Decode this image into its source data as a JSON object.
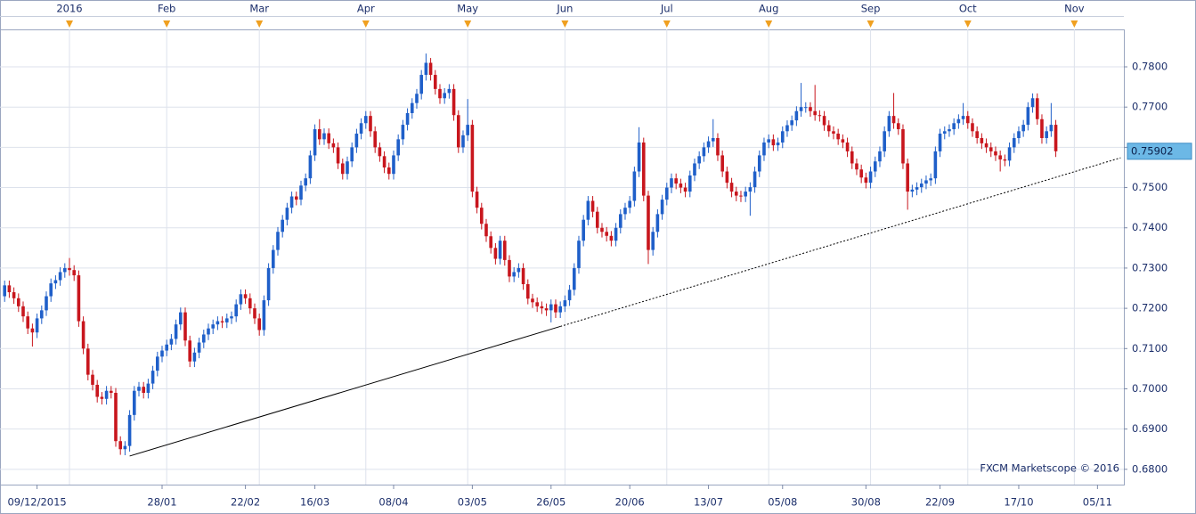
{
  "chart_data": {
    "type": "candlestick",
    "open": [
      0.723,
      0.7257,
      0.724,
      0.7225,
      0.7205,
      0.718,
      0.715,
      0.714,
      0.7175,
      0.7195,
      0.723,
      0.7262,
      0.727,
      0.729,
      0.73,
      0.7295,
      0.7282,
      0.7168,
      0.71,
      0.7035,
      0.701,
      0.698,
      0.6975,
      0.6995,
      0.699,
      0.687,
      0.685,
      0.6858,
      0.6935,
      0.6995,
      0.7005,
      0.699,
      0.7013,
      0.7045,
      0.708,
      0.7095,
      0.711,
      0.7124,
      0.716,
      0.719,
      0.712,
      0.7068,
      0.709,
      0.7115,
      0.7135,
      0.715,
      0.716,
      0.7168,
      0.7165,
      0.7175,
      0.718,
      0.721,
      0.7235,
      0.7225,
      0.72,
      0.7175,
      0.7146,
      0.722,
      0.73,
      0.7345,
      0.739,
      0.742,
      0.745,
      0.7478,
      0.747,
      0.7505,
      0.7523,
      0.758,
      0.7645,
      0.762,
      0.7635,
      0.761,
      0.76,
      0.756,
      0.7534,
      0.7565,
      0.76,
      0.7634,
      0.766,
      0.7678,
      0.764,
      0.76,
      0.7578,
      0.755,
      0.7534,
      0.758,
      0.762,
      0.7656,
      0.7685,
      0.771,
      0.7733,
      0.778,
      0.781,
      0.778,
      0.7745,
      0.7722,
      0.7735,
      0.7745,
      0.768,
      0.76,
      0.763,
      0.7656,
      0.749,
      0.745,
      0.741,
      0.7379,
      0.735,
      0.7323,
      0.7368,
      0.732,
      0.7279,
      0.729,
      0.73,
      0.726,
      0.7224,
      0.7215,
      0.7205,
      0.72,
      0.7195,
      0.721,
      0.719,
      0.7205,
      0.722,
      0.7246,
      0.73,
      0.7368,
      0.742,
      0.7467,
      0.744,
      0.74,
      0.739,
      0.738,
      0.7368,
      0.74,
      0.7434,
      0.745,
      0.7467,
      0.754,
      0.7612,
      0.748,
      0.7345,
      0.739,
      0.7434,
      0.747,
      0.75,
      0.7523,
      0.751,
      0.75,
      0.749,
      0.753,
      0.756,
      0.7578,
      0.76,
      0.7615,
      0.7623,
      0.758,
      0.754,
      0.7512,
      0.749,
      0.748,
      0.7478,
      0.749,
      0.7501,
      0.754,
      0.758,
      0.7612,
      0.762,
      0.7605,
      0.7612,
      0.764,
      0.7655,
      0.7667,
      0.769,
      0.77,
      0.77,
      0.769,
      0.768,
      0.7678,
      0.7655,
      0.764,
      0.7634,
      0.762,
      0.7612,
      0.759,
      0.756,
      0.7545,
      0.7525,
      0.7512,
      0.754,
      0.7565,
      0.759,
      0.764,
      0.7678,
      0.766,
      0.7645,
      0.756,
      0.749,
      0.7495,
      0.7501,
      0.751,
      0.7518,
      0.7523,
      0.759,
      0.7634,
      0.764,
      0.7645,
      0.766,
      0.767,
      0.7678,
      0.766,
      0.764,
      0.7623,
      0.761,
      0.76,
      0.759,
      0.758,
      0.757,
      0.7567,
      0.76,
      0.7623,
      0.764,
      0.7656,
      0.77,
      0.7722,
      0.767,
      0.7623,
      0.764,
      0.7656
    ],
    "high": [
      0.7269,
      0.7269,
      0.7252,
      0.7237,
      0.7217,
      0.7192,
      0.7162,
      0.7187,
      0.7207,
      0.7242,
      0.7274,
      0.7282,
      0.7302,
      0.7312,
      0.7325,
      0.7307,
      0.7294,
      0.718,
      0.7112,
      0.7047,
      0.7022,
      0.6992,
      0.7007,
      0.7007,
      0.7002,
      0.6882,
      0.687,
      0.6947,
      0.7007,
      0.7017,
      0.7017,
      0.7025,
      0.7057,
      0.7092,
      0.7107,
      0.7122,
      0.7136,
      0.7172,
      0.7202,
      0.7202,
      0.7132,
      0.7102,
      0.7127,
      0.7147,
      0.7162,
      0.7172,
      0.718,
      0.718,
      0.7187,
      0.7192,
      0.7222,
      0.7247,
      0.7247,
      0.7237,
      0.7212,
      0.7187,
      0.7232,
      0.7312,
      0.7357,
      0.7402,
      0.7432,
      0.7462,
      0.749,
      0.749,
      0.7517,
      0.7535,
      0.7592,
      0.7657,
      0.767,
      0.7647,
      0.7647,
      0.7622,
      0.7612,
      0.7572,
      0.7577,
      0.7612,
      0.7646,
      0.7672,
      0.769,
      0.769,
      0.7652,
      0.7612,
      0.759,
      0.7562,
      0.7592,
      0.7632,
      0.7668,
      0.7697,
      0.7722,
      0.7745,
      0.7792,
      0.7833,
      0.7822,
      0.7792,
      0.7757,
      0.7747,
      0.7757,
      0.7757,
      0.7692,
      0.7642,
      0.772,
      0.7668,
      0.7502,
      0.7462,
      0.7422,
      0.7391,
      0.7362,
      0.738,
      0.738,
      0.7332,
      0.7302,
      0.7312,
      0.7312,
      0.7272,
      0.7236,
      0.7227,
      0.7217,
      0.7212,
      0.7222,
      0.7222,
      0.7217,
      0.7232,
      0.7258,
      0.7312,
      0.738,
      0.7432,
      0.7479,
      0.7479,
      0.7452,
      0.7412,
      0.7402,
      0.7392,
      0.7412,
      0.7446,
      0.7462,
      0.7479,
      0.7552,
      0.765,
      0.7624,
      0.7492,
      0.7402,
      0.7446,
      0.7482,
      0.7512,
      0.7535,
      0.7535,
      0.7522,
      0.7512,
      0.7542,
      0.7572,
      0.759,
      0.7612,
      0.7627,
      0.767,
      0.7635,
      0.7592,
      0.7552,
      0.7524,
      0.7502,
      0.7492,
      0.7502,
      0.7513,
      0.7552,
      0.7592,
      0.7624,
      0.7632,
      0.7632,
      0.7624,
      0.7652,
      0.7667,
      0.7679,
      0.7702,
      0.776,
      0.7712,
      0.7712,
      0.7755,
      0.7692,
      0.769,
      0.7667,
      0.7652,
      0.7646,
      0.7632,
      0.7624,
      0.7602,
      0.7572,
      0.7557,
      0.7537,
      0.7552,
      0.7577,
      0.7602,
      0.7652,
      0.769,
      0.7735,
      0.7672,
      0.7657,
      0.7572,
      0.7507,
      0.7513,
      0.7522,
      0.753,
      0.7535,
      0.7602,
      0.7646,
      0.7652,
      0.7657,
      0.7672,
      0.7682,
      0.771,
      0.769,
      0.7672,
      0.7652,
      0.7635,
      0.7622,
      0.7612,
      0.7602,
      0.7592,
      0.7582,
      0.7612,
      0.7635,
      0.7652,
      0.7668,
      0.7712,
      0.7734,
      0.7734,
      0.7682,
      0.7652,
      0.771,
      0.7668
    ],
    "low": [
      0.7216,
      0.7226,
      0.7211,
      0.7191,
      0.7166,
      0.7136,
      0.7105,
      0.7126,
      0.7161,
      0.7181,
      0.7216,
      0.7248,
      0.7256,
      0.7276,
      0.7281,
      0.7268,
      0.7154,
      0.7086,
      0.7021,
      0.6996,
      0.6966,
      0.6961,
      0.6961,
      0.6976,
      0.6856,
      0.6836,
      0.6835,
      0.6844,
      0.6921,
      0.6981,
      0.6976,
      0.6976,
      0.6999,
      0.7031,
      0.7066,
      0.7081,
      0.7096,
      0.711,
      0.7146,
      0.7106,
      0.7054,
      0.7054,
      0.7076,
      0.7101,
      0.7121,
      0.7136,
      0.7146,
      0.7151,
      0.7151,
      0.7161,
      0.7166,
      0.7196,
      0.7211,
      0.7186,
      0.7161,
      0.7132,
      0.7132,
      0.7206,
      0.7286,
      0.7331,
      0.7376,
      0.7406,
      0.7436,
      0.7456,
      0.7456,
      0.7491,
      0.7509,
      0.7566,
      0.7606,
      0.7606,
      0.7596,
      0.7586,
      0.7546,
      0.752,
      0.752,
      0.7551,
      0.7586,
      0.762,
      0.7646,
      0.7626,
      0.7586,
      0.7564,
      0.7536,
      0.752,
      0.752,
      0.7566,
      0.7606,
      0.7642,
      0.7671,
      0.7696,
      0.7719,
      0.7766,
      0.7766,
      0.7731,
      0.7708,
      0.7708,
      0.7721,
      0.7666,
      0.7586,
      0.7586,
      0.7616,
      0.7476,
      0.7436,
      0.7396,
      0.7365,
      0.7336,
      0.7309,
      0.7309,
      0.7306,
      0.7265,
      0.7265,
      0.7276,
      0.7246,
      0.721,
      0.7201,
      0.7191,
      0.7186,
      0.7181,
      0.7165,
      0.7176,
      0.7176,
      0.7191,
      0.7206,
      0.7232,
      0.7286,
      0.7354,
      0.7406,
      0.7426,
      0.7386,
      0.7376,
      0.7366,
      0.7354,
      0.7354,
      0.7386,
      0.742,
      0.7436,
      0.7453,
      0.7526,
      0.7466,
      0.731,
      0.7331,
      0.7376,
      0.742,
      0.7456,
      0.7486,
      0.7496,
      0.7486,
      0.7476,
      0.7476,
      0.7516,
      0.7546,
      0.7564,
      0.7586,
      0.7601,
      0.7566,
      0.7526,
      0.7498,
      0.7476,
      0.7466,
      0.7464,
      0.7464,
      0.743,
      0.7487,
      0.7526,
      0.7566,
      0.7598,
      0.7591,
      0.7591,
      0.7598,
      0.7626,
      0.7641,
      0.7653,
      0.7676,
      0.7686,
      0.7676,
      0.7666,
      0.7664,
      0.7641,
      0.7626,
      0.762,
      0.7606,
      0.7598,
      0.7576,
      0.7546,
      0.7531,
      0.7511,
      0.7498,
      0.7498,
      0.7526,
      0.7551,
      0.7576,
      0.7626,
      0.7646,
      0.7631,
      0.7546,
      0.7445,
      0.7476,
      0.7481,
      0.7487,
      0.7496,
      0.7504,
      0.7509,
      0.7576,
      0.762,
      0.7626,
      0.7631,
      0.7646,
      0.7656,
      0.7646,
      0.7626,
      0.7609,
      0.7596,
      0.7586,
      0.7576,
      0.7566,
      0.754,
      0.7553,
      0.7553,
      0.7586,
      0.7609,
      0.7626,
      0.7642,
      0.7686,
      0.7656,
      0.7609,
      0.7609,
      0.7626,
      0.7576
    ],
    "close": [
      0.7257,
      0.724,
      0.7225,
      0.7205,
      0.718,
      0.715,
      0.714,
      0.7175,
      0.7195,
      0.723,
      0.7262,
      0.727,
      0.729,
      0.73,
      0.7295,
      0.7282,
      0.7168,
      0.71,
      0.7035,
      0.701,
      0.698,
      0.6975,
      0.6995,
      0.699,
      0.687,
      0.685,
      0.6858,
      0.6935,
      0.6995,
      0.7005,
      0.699,
      0.7013,
      0.7045,
      0.708,
      0.7095,
      0.711,
      0.7124,
      0.716,
      0.719,
      0.712,
      0.7068,
      0.709,
      0.7115,
      0.7135,
      0.715,
      0.716,
      0.7168,
      0.7165,
      0.7175,
      0.718,
      0.721,
      0.7235,
      0.7225,
      0.72,
      0.7175,
      0.7146,
      0.722,
      0.73,
      0.7345,
      0.739,
      0.742,
      0.745,
      0.7478,
      0.747,
      0.7505,
      0.7523,
      0.758,
      0.7645,
      0.762,
      0.7635,
      0.761,
      0.76,
      0.756,
      0.7534,
      0.7565,
      0.76,
      0.7634,
      0.766,
      0.7678,
      0.764,
      0.76,
      0.7578,
      0.755,
      0.7534,
      0.758,
      0.762,
      0.7656,
      0.7685,
      0.771,
      0.7733,
      0.778,
      0.781,
      0.778,
      0.7745,
      0.7722,
      0.7735,
      0.7745,
      0.768,
      0.76,
      0.763,
      0.7656,
      0.749,
      0.745,
      0.741,
      0.7379,
      0.735,
      0.7323,
      0.7368,
      0.732,
      0.7279,
      0.729,
      0.73,
      0.726,
      0.7224,
      0.7215,
      0.7205,
      0.72,
      0.7195,
      0.721,
      0.719,
      0.7205,
      0.722,
      0.7246,
      0.73,
      0.7368,
      0.742,
      0.7467,
      0.744,
      0.74,
      0.739,
      0.738,
      0.7368,
      0.74,
      0.7434,
      0.745,
      0.7467,
      0.754,
      0.7612,
      0.748,
      0.7345,
      0.739,
      0.7434,
      0.747,
      0.75,
      0.7523,
      0.751,
      0.75,
      0.749,
      0.753,
      0.756,
      0.7578,
      0.76,
      0.7615,
      0.7623,
      0.758,
      0.754,
      0.7512,
      0.749,
      0.748,
      0.7478,
      0.749,
      0.7501,
      0.754,
      0.758,
      0.7612,
      0.762,
      0.7605,
      0.7612,
      0.764,
      0.7655,
      0.7667,
      0.769,
      0.77,
      0.77,
      0.769,
      0.768,
      0.7678,
      0.7655,
      0.764,
      0.7634,
      0.762,
      0.7612,
      0.759,
      0.756,
      0.7545,
      0.7525,
      0.7512,
      0.754,
      0.7565,
      0.759,
      0.764,
      0.7678,
      0.766,
      0.7645,
      0.756,
      0.749,
      0.7495,
      0.7501,
      0.751,
      0.7518,
      0.7523,
      0.759,
      0.7634,
      0.764,
      0.7645,
      0.766,
      0.767,
      0.7678,
      0.766,
      0.764,
      0.7623,
      0.761,
      0.76,
      0.759,
      0.758,
      0.757,
      0.7567,
      0.76,
      0.7623,
      0.764,
      0.7656,
      0.77,
      0.7722,
      0.767,
      0.7623,
      0.764,
      0.7656,
      0.75902
    ],
    "up_color": "#1f5fc9",
    "down_color": "#c8161d",
    "xlim": [
      -1,
      241.7
    ],
    "ylim": [
      0.6762,
      0.7893
    ],
    "yticks": [
      {
        "value": 0.68,
        "label": "0.6800"
      },
      {
        "value": 0.69,
        "label": "0.6900"
      },
      {
        "value": 0.7,
        "label": "0.7000"
      },
      {
        "value": 0.71,
        "label": "0.7100"
      },
      {
        "value": 0.72,
        "label": "0.7200"
      },
      {
        "value": 0.73,
        "label": "0.7300"
      },
      {
        "value": 0.74,
        "label": "0.7400"
      },
      {
        "value": 0.75,
        "label": "0.7500"
      },
      {
        "value": 0.76,
        "label": "0.7600"
      },
      {
        "value": 0.77,
        "label": "0.7700"
      },
      {
        "value": 0.78,
        "label": "0.7800"
      }
    ],
    "xticks": [
      {
        "value": 7,
        "label": "09/12/2015"
      },
      {
        "value": 34,
        "label": "28/01"
      },
      {
        "value": 52,
        "label": "22/02"
      },
      {
        "value": 67,
        "label": "16/03"
      },
      {
        "value": 84,
        "label": "08/04"
      },
      {
        "value": 101,
        "label": "03/05"
      },
      {
        "value": 118,
        "label": "26/05"
      },
      {
        "value": 135,
        "label": "20/06"
      },
      {
        "value": 152,
        "label": "13/07"
      },
      {
        "value": 168,
        "label": "05/08"
      },
      {
        "value": 186,
        "label": "30/08"
      },
      {
        "value": 202,
        "label": "22/09"
      },
      {
        "value": 219,
        "label": "17/10"
      },
      {
        "value": 236,
        "label": "05/11"
      }
    ],
    "x2ticks": [
      {
        "value": 14,
        "label": "2016"
      },
      {
        "value": 35,
        "label": "Feb"
      },
      {
        "value": 55,
        "label": "Mar"
      },
      {
        "value": 78,
        "label": "Apr"
      },
      {
        "value": 100,
        "label": "May"
      },
      {
        "value": 121,
        "label": "Jun"
      },
      {
        "value": 143,
        "label": "Jul"
      },
      {
        "value": 165,
        "label": "Aug"
      },
      {
        "value": 187,
        "label": "Sep"
      },
      {
        "value": 208,
        "label": "Oct"
      },
      {
        "value": 231,
        "label": "Nov"
      }
    ],
    "grid": true,
    "trendline": {
      "x": [
        27,
        120
      ],
      "y": [
        0.6833,
        0.7155
      ]
    },
    "trendline_extension": {
      "x": [
        120,
        241
      ],
      "y": [
        0.7155,
        0.7574
      ]
    },
    "last_price": 0.75902,
    "watermark": "FXCM Marketscope © 2016"
  }
}
